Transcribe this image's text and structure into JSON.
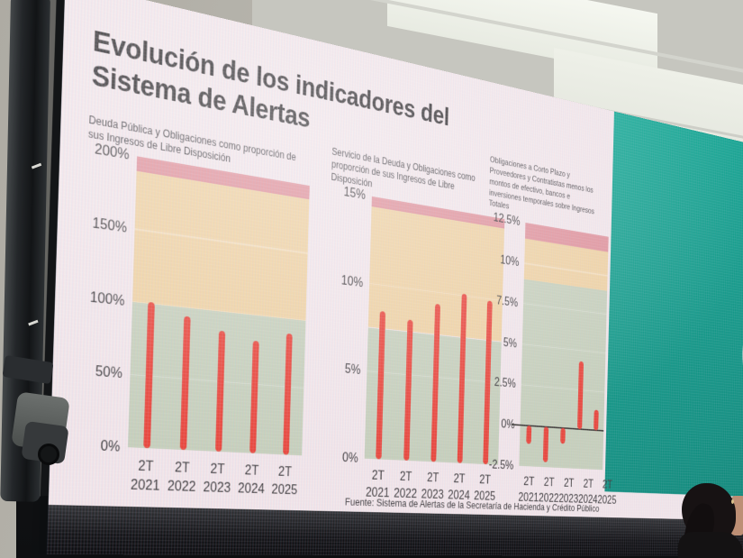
{
  "slide": {
    "title": "Evolución de los indicadores del Sistema de Alertas",
    "footer": "Fuente: Sistema de Alertas de la Secretaría de Hacienda y Crédito Público",
    "colors": {
      "bar": "#e8473c",
      "slide_background": "#f1e6e9",
      "teal_panel": "#129181",
      "band_green": "#c6d0bb",
      "band_orange": "#eed2a3",
      "band_red": "#df949c"
    }
  },
  "chart_data": [
    {
      "type": "bar",
      "title": "Deuda Pública y Obligaciones como proporción de sus Ingresos de Libre Disposición",
      "period_label": "2T",
      "categories": [
        "2021",
        "2022",
        "2023",
        "2024",
        "2025"
      ],
      "values": [
        101,
        94,
        86,
        81,
        89
      ],
      "unit": "%",
      "ylim": [
        0,
        200
      ],
      "yticks": [
        0,
        50,
        100,
        150,
        200
      ],
      "bands": [
        {
          "from": 0,
          "to": 100,
          "color": "#c6d0bb"
        },
        {
          "from": 100,
          "to": 190,
          "color": "#eed2a3"
        },
        {
          "from": 190,
          "to": 200,
          "color": "#df949c"
        }
      ],
      "zero_line": false
    },
    {
      "type": "bar",
      "title": "Servicio de la Deuda y Obligaciones como proporción de sus Ingresos de Libre Disposición",
      "period_label": "2T",
      "categories": [
        "2021",
        "2022",
        "2023",
        "2024",
        "2025"
      ],
      "values": [
        8.5,
        8.2,
        9.3,
        10.1,
        9.9
      ],
      "unit": "%",
      "ylim": [
        0,
        15
      ],
      "yticks": [
        0,
        5,
        10,
        15
      ],
      "bands": [
        {
          "from": 0,
          "to": 7.5,
          "color": "#c6d0bb"
        },
        {
          "from": 7.5,
          "to": 14.4,
          "color": "#eed2a3"
        },
        {
          "from": 14.4,
          "to": 15,
          "color": "#df949c"
        }
      ],
      "zero_line": false
    },
    {
      "type": "bar",
      "title": "Obligaciones a Corto Plazo y Proveedores y Contratistas menos los montos de efectivo, bancos e inversiones temporales sobre Ingresos Totales",
      "period_label": "2T",
      "categories": [
        "2021",
        "2022",
        "2023",
        "2024",
        "2025"
      ],
      "values": [
        -1.1,
        -2.2,
        -1.0,
        4.3,
        1.3
      ],
      "unit": "%",
      "ylim": [
        -2.5,
        12.5
      ],
      "yticks": [
        -2.5,
        0,
        2.5,
        5,
        7.5,
        10,
        12.5
      ],
      "bands": [
        {
          "from": -2.5,
          "to": 9,
          "color": "#c6d0bb"
        },
        {
          "from": 9,
          "to": 11.5,
          "color": "#eed2a3"
        },
        {
          "from": 11.5,
          "to": 12.5,
          "color": "#df949c"
        }
      ],
      "zero_line": true
    }
  ]
}
